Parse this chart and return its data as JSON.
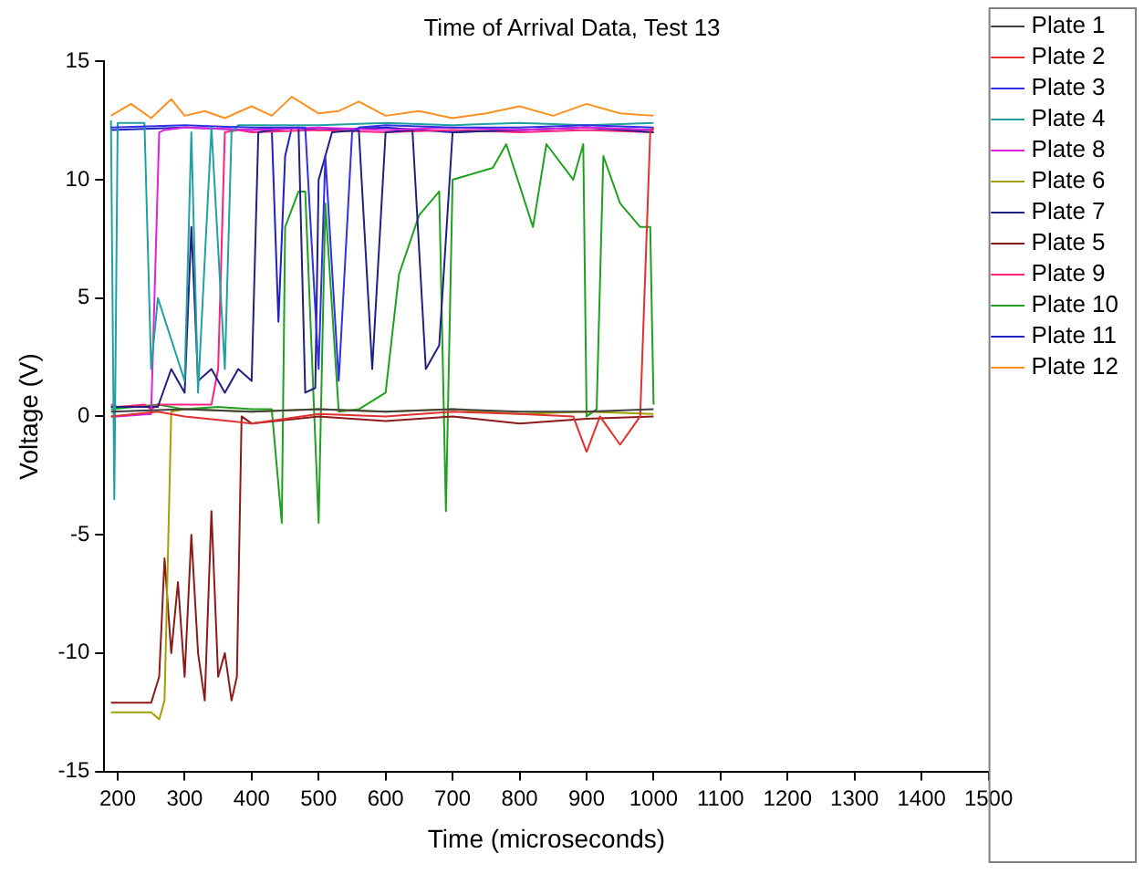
{
  "chart_data": {
    "type": "line",
    "title": "Time of Arrival Data, Test 13",
    "xlabel": "Time (microseconds)",
    "ylabel": "Voltage (V)",
    "xlim": [
      180,
      1500
    ],
    "xticks": [
      200,
      300,
      400,
      500,
      600,
      700,
      800,
      900,
      1000,
      1100,
      1200,
      1300,
      1400,
      1500
    ],
    "ylim": [
      -15,
      15
    ],
    "yticks": [
      -15,
      -10,
      -5,
      0,
      5,
      10,
      15
    ],
    "grid": false,
    "legend": "top right",
    "marker": "none",
    "line_style": "solid",
    "series": [
      {
        "name": "Plate 1",
        "color": "#404040",
        "x": [
          190,
          300,
          400,
          500,
          600,
          700,
          800,
          900,
          1000
        ],
        "values": [
          0.2,
          0.3,
          0.2,
          0.3,
          0.2,
          0.3,
          0.2,
          0.2,
          0.3
        ]
      },
      {
        "name": "Plate 2",
        "color": "#e03030",
        "x": [
          190,
          260,
          300,
          400,
          500,
          600,
          700,
          800,
          880,
          900,
          920,
          950,
          980,
          995,
          1000
        ],
        "values": [
          0,
          0.2,
          0,
          -0.3,
          0.1,
          0,
          0.2,
          0.1,
          0,
          -1.5,
          0,
          -1.2,
          0,
          12,
          12.2
        ]
      },
      {
        "name": "Plate 3",
        "color": "#3030e0",
        "x": [
          190,
          300,
          400,
          480,
          500,
          510,
          530,
          550,
          560,
          600,
          700,
          800,
          900,
          1000
        ],
        "values": [
          12.2,
          12.3,
          12.2,
          12.2,
          2,
          11,
          1.5,
          12,
          12.2,
          12.3,
          12.2,
          12.2,
          12.3,
          12.2
        ]
      },
      {
        "name": "Plate 4",
        "color": "#20a0a0",
        "x": [
          190,
          195,
          200,
          240,
          250,
          260,
          300,
          310,
          320,
          340,
          360,
          370,
          380,
          400,
          500,
          600,
          700,
          800,
          900,
          1000
        ],
        "values": [
          12.5,
          -3.5,
          12.4,
          12.4,
          2,
          5,
          1.5,
          12,
          1,
          12.2,
          2,
          12,
          12.3,
          12.3,
          12.3,
          12.4,
          12.3,
          12.4,
          12.3,
          12.4
        ]
      },
      {
        "name": "Plate 8",
        "color": "#e020e0",
        "x": [
          190,
          200,
          250,
          262,
          270,
          300,
          400,
          500,
          600,
          700,
          800,
          900,
          1000
        ],
        "values": [
          0,
          0,
          0.1,
          12,
          12.1,
          12.2,
          12.1,
          12.2,
          12.1,
          12.2,
          12.1,
          12.2,
          12.1
        ]
      },
      {
        "name": "Plate 6",
        "color": "#a0a000",
        "x": [
          190,
          220,
          250,
          262,
          270,
          280,
          300,
          400,
          500,
          600,
          700,
          800,
          900,
          1000
        ],
        "values": [
          -12.5,
          -12.5,
          -12.5,
          -12.8,
          -12,
          0.2,
          0.3,
          0.2,
          0.3,
          0.2,
          0.3,
          0.1,
          0.2,
          0.1
        ]
      },
      {
        "name": "Plate 7",
        "color": "#202080",
        "x": [
          190,
          260,
          280,
          300,
          310,
          320,
          340,
          360,
          380,
          400,
          410,
          430,
          470,
          480,
          495,
          500,
          520,
          560,
          580,
          600,
          640,
          660,
          680,
          700,
          800,
          900,
          1000
        ],
        "values": [
          0.4,
          0.4,
          2,
          1,
          8,
          1.5,
          2,
          1,
          2,
          1.5,
          12,
          12.1,
          12.2,
          1,
          1.2,
          10,
          12,
          12.1,
          2,
          12,
          12.1,
          2,
          3,
          12,
          12.1,
          12.2,
          12
        ]
      },
      {
        "name": "Plate 5",
        "color": "#8b1a1a",
        "x": [
          190,
          200,
          250,
          262,
          270,
          280,
          290,
          300,
          310,
          320,
          330,
          340,
          350,
          360,
          370,
          378,
          385,
          400,
          500,
          600,
          700,
          800,
          900,
          1000
        ],
        "values": [
          -12.1,
          -12.1,
          -12.1,
          -11,
          -6,
          -10,
          -7,
          -11,
          -5,
          -10,
          -12,
          -4,
          -11,
          -10,
          -12,
          -11,
          0,
          -0.3,
          0,
          -0.2,
          0,
          -0.3,
          -0.1,
          0
        ]
      },
      {
        "name": "Plate 9",
        "color": "#ff2080",
        "x": [
          190,
          200,
          240,
          250,
          260,
          300,
          340,
          350,
          360,
          380,
          400,
          500,
          600,
          700,
          800,
          900,
          1000
        ],
        "values": [
          0.5,
          0.4,
          0.5,
          0.3,
          0.5,
          0.5,
          0.5,
          2,
          12,
          12.1,
          12,
          12.1,
          12,
          12.1,
          12,
          12.1,
          12
        ]
      },
      {
        "name": "Plate 10",
        "color": "#20a020",
        "x": [
          190,
          260,
          300,
          350,
          400,
          430,
          445,
          450,
          470,
          480,
          500,
          510,
          530,
          560,
          600,
          620,
          650,
          680,
          690,
          700,
          760,
          780,
          820,
          840,
          880,
          895,
          900,
          915,
          925,
          950,
          980,
          995,
          1000
        ],
        "values": [
          0.3,
          0.5,
          0.3,
          0.4,
          0.3,
          0.3,
          -4.5,
          8,
          9.5,
          9.5,
          -4.5,
          9,
          0.2,
          0.3,
          1,
          6,
          8.5,
          9.5,
          -4,
          10,
          10.5,
          11.5,
          8,
          11.5,
          10,
          11.5,
          0,
          0.3,
          11,
          9,
          8,
          8,
          0.5
        ]
      },
      {
        "name": "Plate 11",
        "color": "#2020c0",
        "x": [
          190,
          300,
          400,
          430,
          440,
          450,
          460,
          500,
          600,
          700,
          800,
          900,
          1000
        ],
        "values": [
          12.1,
          12.2,
          12.1,
          12.2,
          4,
          11,
          12.2,
          12.1,
          12.2,
          12,
          12.1,
          12.2,
          12.1
        ]
      },
      {
        "name": "Plate 12",
        "color": "#ff9020",
        "x": [
          190,
          220,
          250,
          280,
          300,
          330,
          360,
          400,
          430,
          460,
          500,
          530,
          560,
          600,
          650,
          700,
          750,
          800,
          850,
          900,
          950,
          1000
        ],
        "values": [
          12.7,
          13.2,
          12.6,
          13.4,
          12.7,
          12.9,
          12.6,
          13.1,
          12.7,
          13.5,
          12.8,
          12.9,
          13.3,
          12.7,
          12.9,
          12.6,
          12.8,
          13.1,
          12.7,
          13.2,
          12.8,
          12.7
        ]
      }
    ]
  }
}
